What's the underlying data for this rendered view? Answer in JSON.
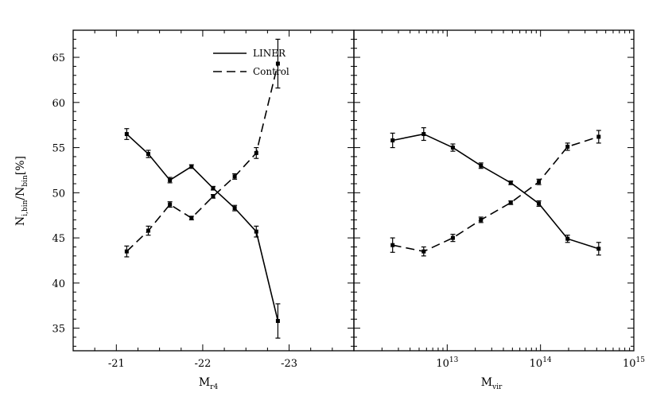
{
  "chart_data": [
    {
      "type": "line",
      "xlabel_main": "M",
      "xlabel_sub": "r4",
      "ylabel_main": "N",
      "ylabel_sub1": "i,bin",
      "ylabel_mid": "/N",
      "ylabel_sub2": "bin",
      "ylabel_tail": "[%]",
      "xlim": [
        -20.5,
        -23.75
      ],
      "ylim": [
        32.5,
        68
      ],
      "xticks": [
        -21,
        -22,
        -23
      ],
      "xtick_labels": [
        "-21",
        "-22",
        "-23"
      ],
      "yticks": [
        35,
        40,
        45,
        50,
        55,
        60,
        65
      ],
      "ytick_labels": [
        "35",
        "40",
        "45",
        "50",
        "55",
        "60",
        "65"
      ],
      "legend": {
        "position": "top-center",
        "entries": [
          "LINER",
          "Control"
        ]
      },
      "series": [
        {
          "name": "LINER",
          "style": "solid",
          "x": [
            -21.12,
            -21.37,
            -21.62,
            -21.87,
            -22.12,
            -22.37,
            -22.62,
            -22.87
          ],
          "y": [
            56.5,
            54.3,
            51.4,
            52.9,
            50.5,
            48.3,
            45.7,
            35.8
          ],
          "err": [
            0.6,
            0.4,
            0.3,
            0.2,
            0.2,
            0.3,
            0.6,
            1.9
          ]
        },
        {
          "name": "Control",
          "style": "dashed",
          "x": [
            -21.12,
            -21.37,
            -21.62,
            -21.87,
            -22.12,
            -22.37,
            -22.62,
            -22.87
          ],
          "y": [
            43.5,
            45.8,
            48.7,
            47.2,
            49.6,
            51.8,
            54.4,
            64.3
          ],
          "err": [
            0.6,
            0.5,
            0.3,
            0.2,
            0.2,
            0.3,
            0.6,
            2.7
          ]
        }
      ]
    },
    {
      "type": "line",
      "xscale": "log",
      "xlabel_main": "M",
      "xlabel_sub": "vir",
      "xlim": [
        1000000000000.0,
        1000000000000000.0
      ],
      "ylim": [
        32.5,
        68
      ],
      "xticks": [
        10000000000000.0,
        100000000000000.0,
        1000000000000000.0
      ],
      "xtick_labels": [
        {
          "base": "10",
          "exp": "13"
        },
        {
          "base": "10",
          "exp": "14"
        },
        {
          "base": "10",
          "exp": "15"
        }
      ],
      "series": [
        {
          "name": "LINER",
          "style": "solid",
          "x": [
            2600000000000.0,
            5600000000000.0,
            11500000000000.0,
            23000000000000.0,
            48000000000000.0,
            96000000000000.0,
            195000000000000.0,
            420000000000000.0
          ],
          "y": [
            55.8,
            56.5,
            55.0,
            53.0,
            51.1,
            48.8,
            44.9,
            43.8
          ],
          "err": [
            0.8,
            0.7,
            0.4,
            0.3,
            0.2,
            0.3,
            0.4,
            0.7
          ]
        },
        {
          "name": "Control",
          "style": "dashed",
          "x": [
            2600000000000.0,
            5600000000000.0,
            11500000000000.0,
            23000000000000.0,
            48000000000000.0,
            96000000000000.0,
            195000000000000.0,
            420000000000000.0
          ],
          "y": [
            44.2,
            43.5,
            45.0,
            47.0,
            48.9,
            51.2,
            55.1,
            56.2
          ],
          "err": [
            0.8,
            0.5,
            0.4,
            0.3,
            0.2,
            0.3,
            0.4,
            0.7
          ]
        }
      ]
    }
  ]
}
